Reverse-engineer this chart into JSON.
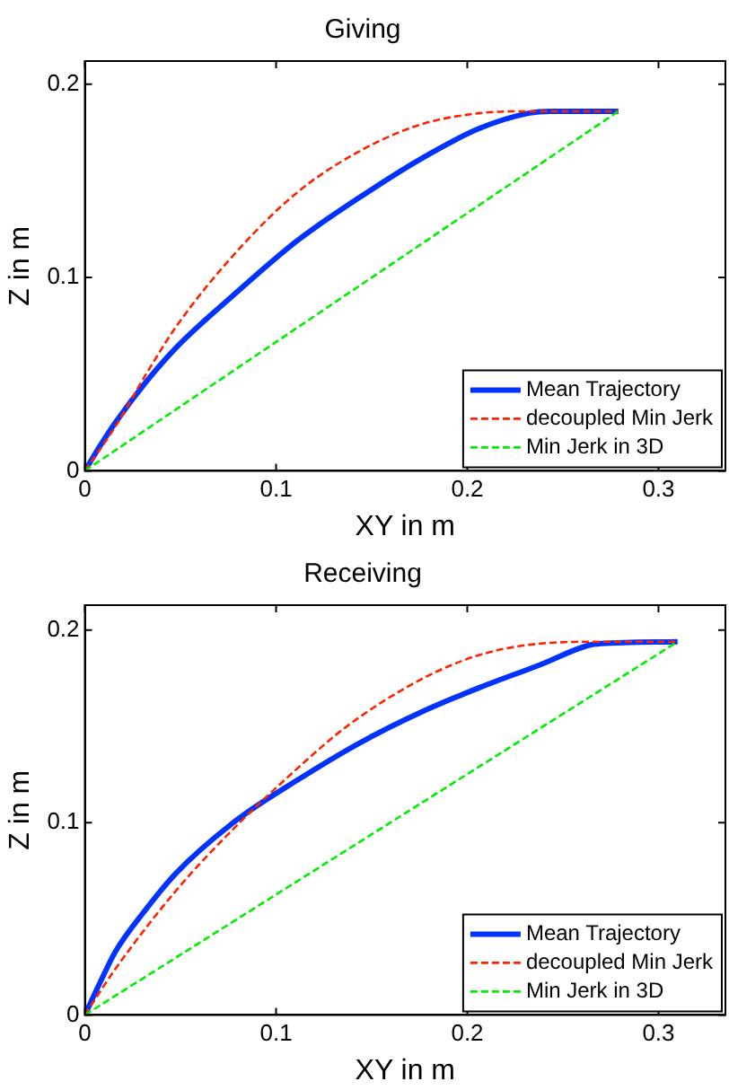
{
  "chart_data": [
    {
      "type": "line",
      "title": "Giving",
      "xlabel": "XY in m",
      "ylabel": "Z in m",
      "xlim": [
        0,
        0.335
      ],
      "xticks": [
        0,
        0.1,
        0.2,
        0.3
      ],
      "ylim": [
        0,
        0.212
      ],
      "yticks": [
        0,
        0.1,
        0.2
      ],
      "grid": false,
      "legend": "bottom right",
      "marker": "none",
      "series": [
        {
          "name": "Mean Trajectory",
          "color": "#0033ff",
          "line_style": "solid",
          "x": [
            0,
            0.008,
            0.016,
            0.032,
            0.048,
            0.079,
            0.111,
            0.143,
            0.175,
            0.206,
            0.232,
            0.244,
            0.279
          ],
          "values": [
            0,
            0.013,
            0.025,
            0.046,
            0.064,
            0.092,
            0.119,
            0.141,
            0.161,
            0.177,
            0.185,
            0.186,
            0.186
          ]
        },
        {
          "name": "decoupled Min Jerk",
          "color": "#ff2200",
          "line_style": "dashed",
          "x": [
            0,
            0.016,
            0.032,
            0.048,
            0.079,
            0.111,
            0.143,
            0.175,
            0.206,
            0.232,
            0.279
          ],
          "values": [
            0,
            0.023,
            0.05,
            0.075,
            0.113,
            0.144,
            0.165,
            0.179,
            0.185,
            0.186,
            0.186
          ]
        },
        {
          "name": "Min Jerk in 3D",
          "color": "#00ee00",
          "line_style": "dashed",
          "x": [
            0,
            0.279
          ],
          "values": [
            0,
            0.186
          ]
        }
      ]
    },
    {
      "type": "line",
      "title": "Receiving",
      "xlabel": "XY in m",
      "ylabel": "Z in m",
      "xlim": [
        0,
        0.335
      ],
      "xticks": [
        0,
        0.1,
        0.2,
        0.3
      ],
      "ylim": [
        0,
        0.213
      ],
      "yticks": [
        0,
        0.1,
        0.2
      ],
      "grid": false,
      "legend": "bottom right",
      "marker": "none",
      "series": [
        {
          "name": "Mean Trajectory",
          "color": "#0033ff",
          "line_style": "solid",
          "x": [
            0,
            0.008,
            0.016,
            0.032,
            0.048,
            0.079,
            0.111,
            0.143,
            0.175,
            0.206,
            0.238,
            0.263,
            0.27,
            0.31
          ],
          "values": [
            0,
            0.017,
            0.033,
            0.055,
            0.074,
            0.101,
            0.122,
            0.141,
            0.157,
            0.17,
            0.182,
            0.192,
            0.193,
            0.194
          ]
        },
        {
          "name": "decoupled Min Jerk",
          "color": "#ff2200",
          "line_style": "dashed",
          "x": [
            0,
            0.016,
            0.048,
            0.079,
            0.111,
            0.137,
            0.175,
            0.206,
            0.238,
            0.27,
            0.31
          ],
          "values": [
            0,
            0.024,
            0.065,
            0.098,
            0.128,
            0.15,
            0.174,
            0.187,
            0.193,
            0.194,
            0.194
          ]
        },
        {
          "name": "Min Jerk in 3D",
          "color": "#00ee00",
          "line_style": "dashed",
          "x": [
            0,
            0.31
          ],
          "values": [
            0,
            0.194
          ]
        }
      ]
    }
  ]
}
